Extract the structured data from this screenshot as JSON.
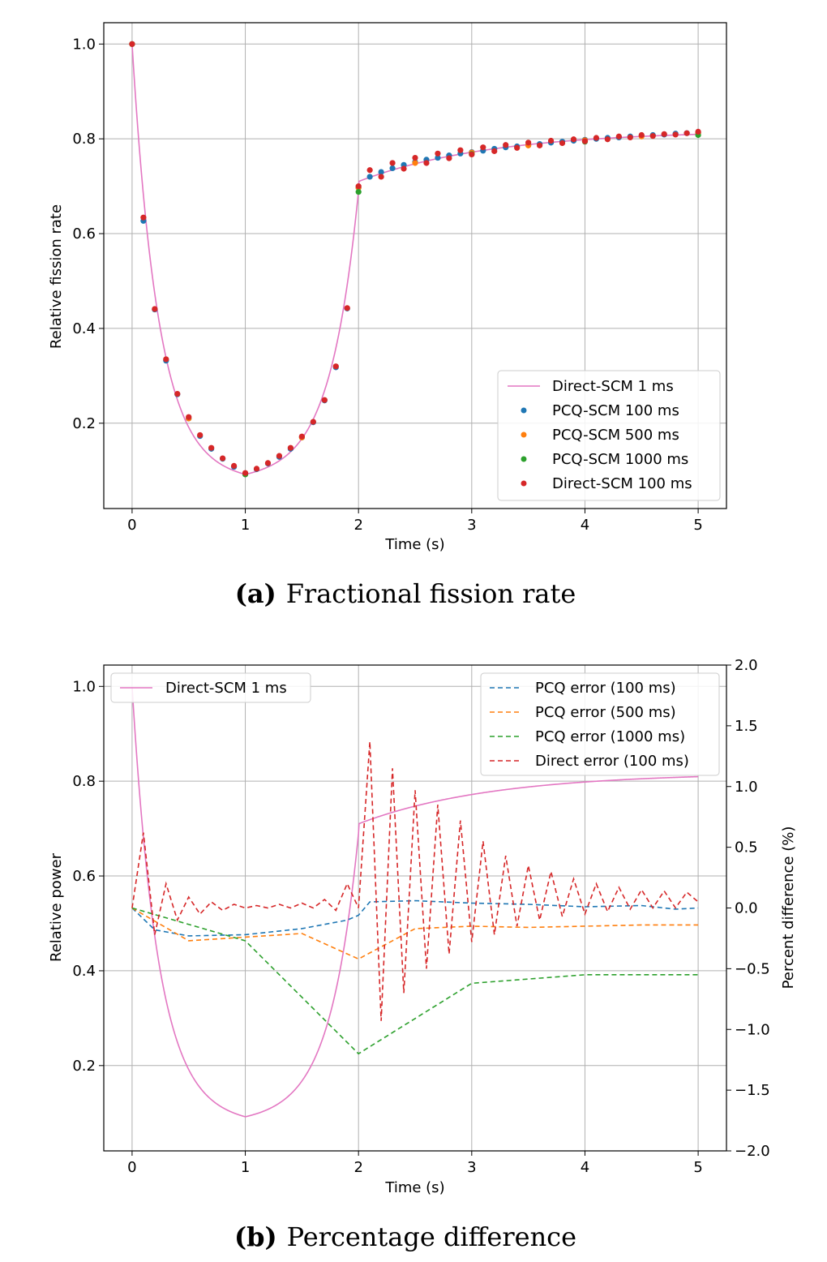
{
  "chart_data": [
    {
      "type": "line",
      "panel_label": "(a)",
      "caption": "Fractional fission rate",
      "xlabel": "Time (s)",
      "ylabel": "Relative fission rate",
      "xlim": [
        -0.25,
        5.25
      ],
      "ylim": [
        0.02,
        1.045
      ],
      "xticks": [
        0,
        1,
        2,
        3,
        4,
        5
      ],
      "xtick_labels": [
        "0",
        "1",
        "2",
        "3",
        "4",
        "5"
      ],
      "yticks": [
        0.2,
        0.4,
        0.6,
        0.8,
        1.0
      ],
      "ytick_labels": [
        "0.2",
        "0.4",
        "0.6",
        "0.8",
        "1.0"
      ],
      "grid": true,
      "legend_position": "lower-right",
      "series": [
        {
          "name": "Direct-SCM 1 ms",
          "style": "line",
          "color": "#e377c2",
          "generator": "reference_curve"
        },
        {
          "name": "PCQ-SCM 100 ms",
          "style": "markers",
          "color": "#1f77b4",
          "x": [
            0,
            0.1,
            0.2,
            0.3,
            0.4,
            0.5,
            0.6,
            0.7,
            0.8,
            0.9,
            1.0,
            1.1,
            1.2,
            1.3,
            1.4,
            1.5,
            1.6,
            1.7,
            1.8,
            1.9,
            2.0,
            2.1,
            2.2,
            2.3,
            2.4,
            2.5,
            2.6,
            2.7,
            2.8,
            2.9,
            3.0,
            3.1,
            3.2,
            3.3,
            3.4,
            3.5,
            3.6,
            3.7,
            3.8,
            3.9,
            4.0,
            4.1,
            4.2,
            4.3,
            4.4,
            4.5,
            4.6,
            4.7,
            4.8,
            4.9,
            5.0
          ],
          "y": [
            1.0,
            0.627,
            0.44,
            0.332,
            0.261,
            0.21,
            0.173,
            0.146,
            0.125,
            0.108,
            0.094,
            0.103,
            0.115,
            0.129,
            0.146,
            0.17,
            0.202,
            0.248,
            0.318,
            0.442,
            0.697,
            0.72,
            0.73,
            0.738,
            0.745,
            0.751,
            0.756,
            0.76,
            0.765,
            0.769,
            0.772,
            0.775,
            0.779,
            0.782,
            0.784,
            0.787,
            0.789,
            0.792,
            0.794,
            0.796,
            0.798,
            0.8,
            0.802,
            0.803,
            0.805,
            0.806,
            0.808,
            0.809,
            0.811,
            0.812,
            0.813
          ]
        },
        {
          "name": "PCQ-SCM 500 ms",
          "style": "markers",
          "color": "#ff7f0e",
          "x": [
            0,
            0.5,
            1.0,
            1.5,
            2.0,
            2.5,
            3.0,
            3.5,
            4.0,
            4.5,
            5.0
          ],
          "y": [
            1.0,
            0.21,
            0.094,
            0.17,
            0.697,
            0.749,
            0.771,
            0.786,
            0.797,
            0.805,
            0.812
          ]
        },
        {
          "name": "PCQ-SCM 1000 ms",
          "style": "markers",
          "color": "#2ca02c",
          "x": [
            0,
            1.0,
            2.0,
            3.0,
            4.0,
            5.0
          ],
          "y": [
            1.0,
            0.092,
            0.688,
            0.768,
            0.794,
            0.808
          ]
        },
        {
          "name": "Direct-SCM 100 ms",
          "style": "markers",
          "color": "#d62728",
          "x": [
            0,
            0.1,
            0.2,
            0.3,
            0.4,
            0.5,
            0.6,
            0.7,
            0.8,
            0.9,
            1.0,
            1.1,
            1.2,
            1.3,
            1.4,
            1.5,
            1.6,
            1.7,
            1.8,
            1.9,
            2.0,
            2.1,
            2.2,
            2.3,
            2.4,
            2.5,
            2.6,
            2.7,
            2.8,
            2.9,
            3.0,
            3.1,
            3.2,
            3.3,
            3.4,
            3.5,
            3.6,
            3.7,
            3.8,
            3.9,
            4.0,
            4.1,
            4.2,
            4.3,
            4.4,
            4.5,
            4.6,
            4.7,
            4.8,
            4.9,
            5.0
          ],
          "y": [
            1.0,
            0.634,
            0.441,
            0.335,
            0.262,
            0.213,
            0.175,
            0.148,
            0.126,
            0.11,
            0.095,
            0.104,
            0.116,
            0.131,
            0.148,
            0.172,
            0.203,
            0.249,
            0.32,
            0.443,
            0.7,
            0.734,
            0.72,
            0.749,
            0.737,
            0.76,
            0.749,
            0.769,
            0.759,
            0.776,
            0.767,
            0.782,
            0.774,
            0.787,
            0.781,
            0.792,
            0.786,
            0.796,
            0.791,
            0.799,
            0.795,
            0.802,
            0.799,
            0.805,
            0.803,
            0.808,
            0.806,
            0.81,
            0.809,
            0.812,
            0.815
          ]
        }
      ]
    },
    {
      "type": "line",
      "panel_label": "(b)",
      "caption": "Percentage difference",
      "xlabel": "Time (s)",
      "ylabel": "Relative power",
      "y2label": "Percent difference (%)",
      "xlim": [
        -0.25,
        5.25
      ],
      "ylim": [
        0.02,
        1.045
      ],
      "y2lim": [
        -2.0,
        2.0
      ],
      "xticks": [
        0,
        1,
        2,
        3,
        4,
        5
      ],
      "xtick_labels": [
        "0",
        "1",
        "2",
        "3",
        "4",
        "5"
      ],
      "yticks": [
        0.2,
        0.4,
        0.6,
        0.8,
        1.0
      ],
      "ytick_labels": [
        "0.2",
        "0.4",
        "0.6",
        "0.8",
        "1.0"
      ],
      "y2ticks": [
        -2.0,
        -1.5,
        -1.0,
        -0.5,
        0.0,
        0.5,
        1.0,
        1.5,
        2.0
      ],
      "y2tick_labels": [
        "−2.0",
        "−1.5",
        "−1.0",
        "−0.5",
        "0.0",
        "0.5",
        "1.0",
        "1.5",
        "2.0"
      ],
      "grid": true,
      "legend_left_position": "top-left",
      "legend_right_position": "top-right",
      "series": [
        {
          "name": "Direct-SCM 1 ms",
          "axis": "left",
          "style": "line",
          "color": "#e377c2",
          "generator": "reference_curve"
        },
        {
          "name": "PCQ error (100 ms)",
          "axis": "right",
          "style": "dashed",
          "color": "#1f77b4",
          "x": [
            0,
            0.2,
            0.5,
            1.0,
            1.5,
            1.9,
            2.0,
            2.1,
            2.5,
            3.0,
            3.5,
            4.0,
            4.5,
            4.8,
            5.0
          ],
          "y": [
            0.0,
            -0.18,
            -0.23,
            -0.22,
            -0.17,
            -0.1,
            -0.06,
            0.05,
            0.06,
            0.04,
            0.03,
            0.01,
            0.02,
            -0.01,
            0.0
          ]
        },
        {
          "name": "PCQ error (500 ms)",
          "axis": "right",
          "style": "dashed",
          "color": "#ff7f0e",
          "x": [
            0,
            0.5,
            1.0,
            1.5,
            2.0,
            2.5,
            3.0,
            3.5,
            4.0,
            4.5,
            5.0
          ],
          "y": [
            0.0,
            -0.27,
            -0.24,
            -0.21,
            -0.42,
            -0.17,
            -0.15,
            -0.16,
            -0.15,
            -0.14,
            -0.14
          ]
        },
        {
          "name": "PCQ error (1000 ms)",
          "axis": "right",
          "style": "dashed",
          "color": "#2ca02c",
          "x": [
            0,
            1.0,
            2.0,
            3.0,
            4.0,
            5.0
          ],
          "y": [
            0.0,
            -0.27,
            -1.2,
            -0.62,
            -0.55,
            -0.55
          ]
        },
        {
          "name": "Direct error (100 ms)",
          "axis": "right",
          "style": "dashed",
          "color": "#d62728",
          "x": [
            0,
            0.1,
            0.2,
            0.3,
            0.4,
            0.5,
            0.6,
            0.7,
            0.8,
            0.9,
            1.0,
            1.1,
            1.2,
            1.3,
            1.4,
            1.5,
            1.6,
            1.7,
            1.8,
            1.9,
            2.0,
            2.1,
            2.2,
            2.3,
            2.4,
            2.5,
            2.6,
            2.7,
            2.8,
            2.9,
            3.0,
            3.1,
            3.2,
            3.3,
            3.4,
            3.5,
            3.6,
            3.7,
            3.8,
            3.9,
            4.0,
            4.1,
            4.2,
            4.3,
            4.4,
            4.5,
            4.6,
            4.7,
            4.8,
            4.9,
            5.0
          ],
          "y": [
            0.0,
            0.62,
            -0.22,
            0.2,
            -0.1,
            0.09,
            -0.05,
            0.05,
            -0.02,
            0.03,
            0.0,
            0.02,
            0.0,
            0.03,
            0.0,
            0.04,
            0.0,
            0.07,
            -0.02,
            0.2,
            0.0,
            1.37,
            -0.93,
            1.15,
            -0.7,
            0.97,
            -0.5,
            0.85,
            -0.38,
            0.72,
            -0.28,
            0.55,
            -0.22,
            0.43,
            -0.15,
            0.35,
            -0.1,
            0.3,
            -0.07,
            0.24,
            -0.05,
            0.2,
            -0.03,
            0.17,
            -0.01,
            0.15,
            0.0,
            0.14,
            0.0,
            0.13,
            0.05
          ]
        }
      ]
    }
  ]
}
